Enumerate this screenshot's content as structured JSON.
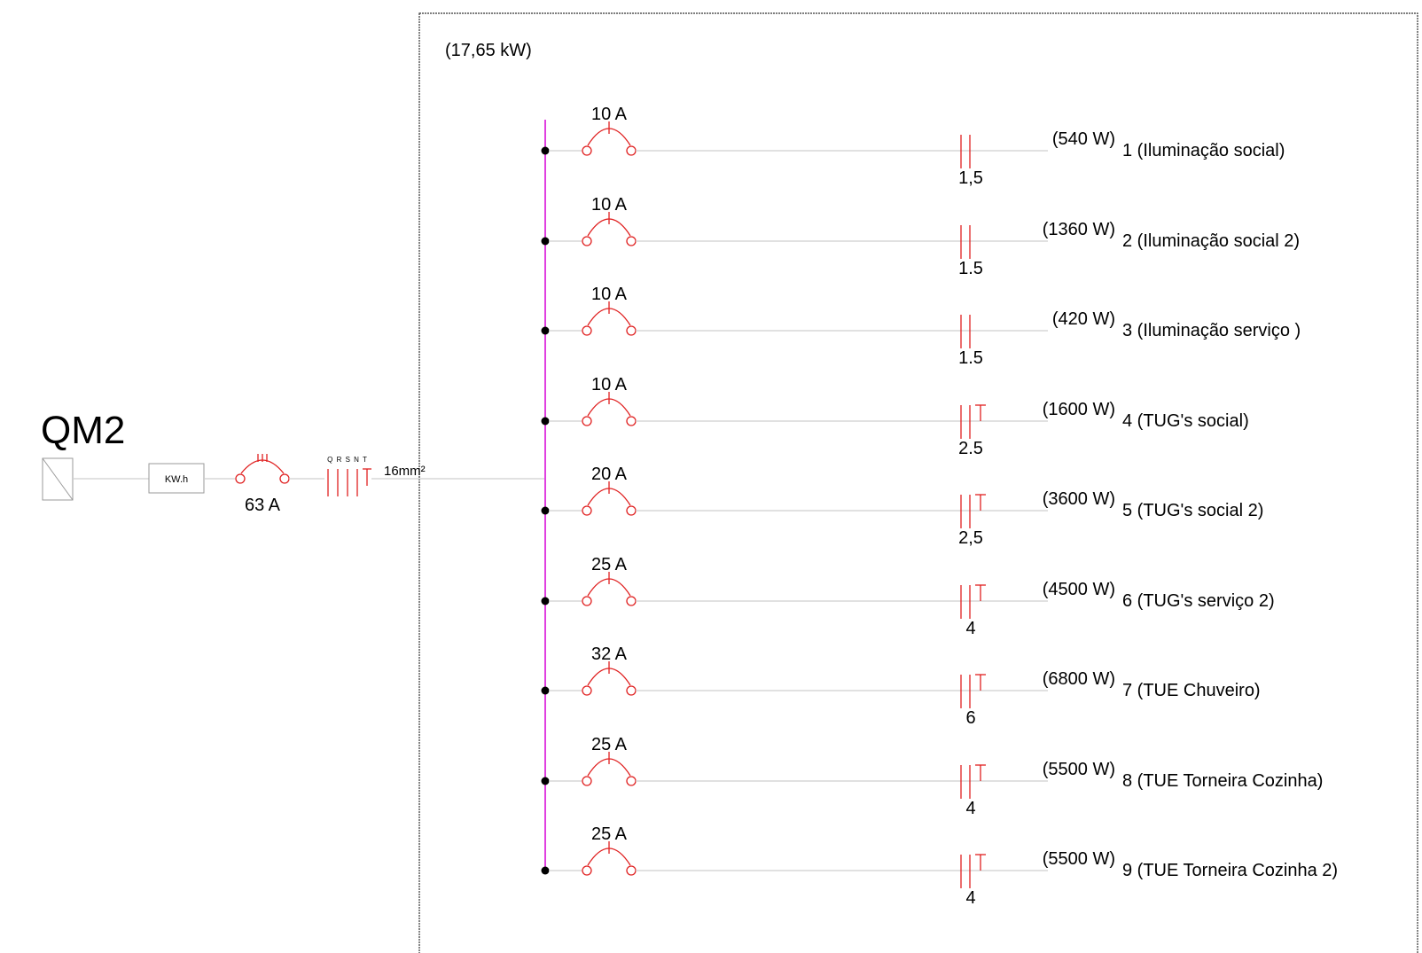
{
  "panel": {
    "name": "QM2",
    "name_color": "#22e022",
    "total_power": "(17,65 kW)",
    "meter_label": "KW.h",
    "main_breaker": "63 A",
    "main_cable_phases": "Q R S N T",
    "main_cable_section": "16mm²"
  },
  "colors": {
    "busbar": "#e040e0",
    "device": "#e02020",
    "wire": "#cfcfcf",
    "frame": "#333333"
  },
  "circuits": [
    {
      "breaker": "10 A",
      "power": "(540 W)",
      "label": "1 (Iluminação social)",
      "section": "1,5",
      "ground": false
    },
    {
      "breaker": "10 A",
      "power": "(1360 W)",
      "label": "2 (Iluminação social 2)",
      "section": "1.5",
      "ground": false
    },
    {
      "breaker": "10 A",
      "power": "(420 W)",
      "label": "3 (Iluminação serviço )",
      "section": "1.5",
      "ground": false
    },
    {
      "breaker": "10 A",
      "power": "(1600 W)",
      "label": "4 (TUG's social)",
      "section": "2.5",
      "ground": true
    },
    {
      "breaker": "20 A",
      "power": "(3600 W)",
      "label": "5 (TUG's social 2)",
      "section": "2,5",
      "ground": true
    },
    {
      "breaker": "25 A",
      "power": "(4500 W)",
      "label": "6 (TUG's serviço 2)",
      "section": "4",
      "ground": true
    },
    {
      "breaker": "32 A",
      "power": "(6800 W)",
      "label": "7 (TUE Chuveiro)",
      "section": "6",
      "ground": true
    },
    {
      "breaker": "25 A",
      "power": "(5500 W)",
      "label": "8 (TUE Torneira Cozinha)",
      "section": "4",
      "ground": true
    },
    {
      "breaker": "25 A",
      "power": "(5500 W)",
      "label": "9 (TUE Torneira Cozinha 2)",
      "section": "4",
      "ground": true
    }
  ]
}
